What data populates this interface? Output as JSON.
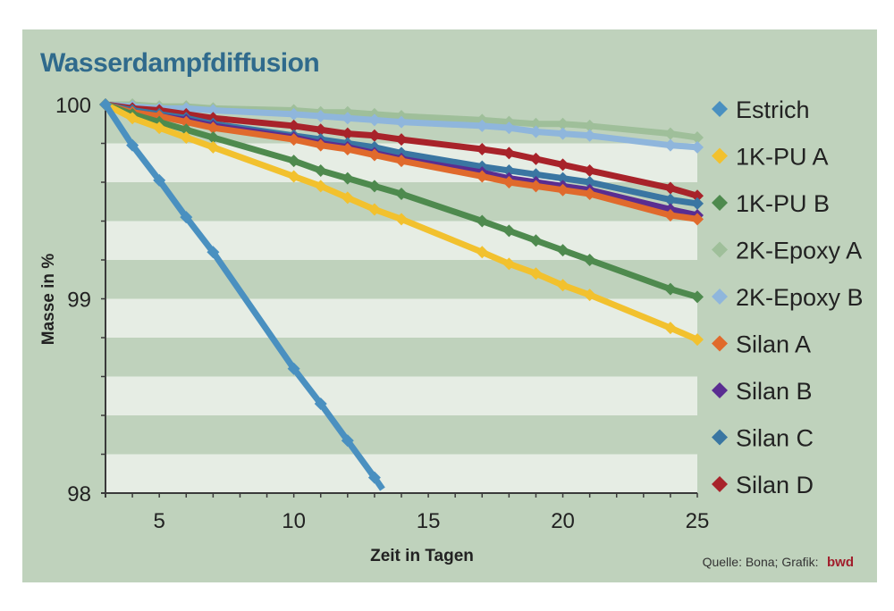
{
  "chart_data": {
    "type": "line",
    "title": "Wasserdampfdiffusion",
    "xlabel": "Zeit in Tagen",
    "ylabel": "Masse in %",
    "xlim": [
      3,
      25
    ],
    "ylim": [
      98,
      100
    ],
    "x_ticks": [
      5,
      10,
      15,
      20,
      25
    ],
    "y_ticks": [
      98,
      99,
      100
    ],
    "y_minor_step": 0.2,
    "x_minor_step": 1,
    "grid": "alternating horizontal bands every 0.2",
    "legend_position": "right",
    "source": "Quelle: Bona; Grafik:",
    "source_brand": "bwd",
    "series": [
      {
        "name": "Estrich",
        "color": "#4a90c0",
        "x": [
          3,
          4,
          5,
          6,
          7,
          10,
          11,
          12,
          13,
          13.3
        ],
        "y": [
          100,
          99.79,
          99.61,
          99.42,
          99.24,
          98.64,
          98.46,
          98.27,
          98.08,
          98.02
        ],
        "markers": 9
      },
      {
        "name": "1K-PU A",
        "color": "#f2c12e",
        "x": [
          3,
          4,
          5,
          6,
          7,
          10,
          11,
          12,
          13,
          14,
          17,
          18,
          19,
          20,
          21,
          24,
          25
        ],
        "y": [
          100,
          99.93,
          99.88,
          99.83,
          99.78,
          99.63,
          99.58,
          99.52,
          99.46,
          99.41,
          99.24,
          99.18,
          99.13,
          99.07,
          99.02,
          98.85,
          98.79
        ]
      },
      {
        "name": "1K-PU B",
        "color": "#4e8a4e",
        "x": [
          3,
          4,
          5,
          6,
          7,
          10,
          11,
          12,
          13,
          14,
          17,
          18,
          19,
          20,
          21,
          24,
          25
        ],
        "y": [
          100,
          99.95,
          99.91,
          99.87,
          99.83,
          99.71,
          99.66,
          99.62,
          99.58,
          99.54,
          99.4,
          99.35,
          99.3,
          99.25,
          99.2,
          99.05,
          99.01
        ]
      },
      {
        "name": "2K-Epoxy A",
        "color": "#9fbf9a",
        "x": [
          3,
          4,
          5,
          6,
          7,
          10,
          11,
          12,
          13,
          14,
          17,
          18,
          19,
          20,
          21,
          24,
          25
        ],
        "y": [
          100,
          100,
          99.99,
          99.99,
          99.98,
          99.97,
          99.96,
          99.96,
          99.95,
          99.94,
          99.92,
          99.91,
          99.9,
          99.9,
          99.89,
          99.85,
          99.83
        ]
      },
      {
        "name": "2K-Epoxy B",
        "color": "#8fb6dc",
        "x": [
          3,
          4,
          5,
          6,
          7,
          10,
          11,
          12,
          13,
          14,
          17,
          18,
          19,
          20,
          21,
          24,
          25
        ],
        "y": [
          100,
          99.99,
          99.98,
          99.98,
          99.97,
          99.95,
          99.94,
          99.93,
          99.92,
          99.91,
          99.89,
          99.88,
          99.86,
          99.85,
          99.84,
          99.79,
          99.78
        ]
      },
      {
        "name": "Silan A",
        "color": "#e06a2c",
        "x": [
          3,
          4,
          5,
          6,
          7,
          10,
          11,
          12,
          13,
          14,
          17,
          18,
          19,
          20,
          21,
          24,
          25
        ],
        "y": [
          100,
          99.96,
          99.94,
          99.91,
          99.88,
          99.82,
          99.79,
          99.77,
          99.74,
          99.71,
          99.63,
          99.6,
          99.58,
          99.56,
          99.54,
          99.43,
          99.41
        ]
      },
      {
        "name": "Silan B",
        "color": "#5a2d91",
        "x": [
          3,
          4,
          5,
          6,
          7,
          10,
          11,
          12,
          13,
          14,
          17,
          18,
          19,
          20,
          21,
          24,
          25
        ],
        "y": [
          100,
          99.96,
          99.94,
          99.92,
          99.89,
          99.83,
          99.8,
          99.78,
          99.75,
          99.72,
          99.65,
          99.62,
          99.6,
          99.58,
          99.56,
          99.46,
          99.43
        ]
      },
      {
        "name": "Silan C",
        "color": "#3a76a2",
        "x": [
          3,
          4,
          5,
          6,
          7,
          10,
          11,
          12,
          13,
          14,
          17,
          18,
          19,
          20,
          21,
          24,
          25
        ],
        "y": [
          100,
          99.97,
          99.95,
          99.93,
          99.9,
          99.84,
          99.82,
          99.8,
          99.78,
          99.75,
          99.68,
          99.66,
          99.64,
          99.62,
          99.6,
          99.51,
          99.49
        ]
      },
      {
        "name": "Silan D",
        "color": "#a8232a",
        "x": [
          3,
          4,
          5,
          6,
          7,
          10,
          11,
          12,
          13,
          14,
          17,
          18,
          19,
          20,
          21,
          24,
          25
        ],
        "y": [
          100,
          99.98,
          99.97,
          99.95,
          99.93,
          99.89,
          99.87,
          99.85,
          99.84,
          99.82,
          99.77,
          99.75,
          99.72,
          99.69,
          99.66,
          99.57,
          99.53
        ]
      }
    ]
  },
  "colors": {
    "panel_bg": "#bfd2bc",
    "band_light": "#e6ede4",
    "band_dark": "#bfd2bc",
    "axis": "#3a3a3a",
    "title": "#2f6a8c",
    "brand": "#a11d2b"
  }
}
